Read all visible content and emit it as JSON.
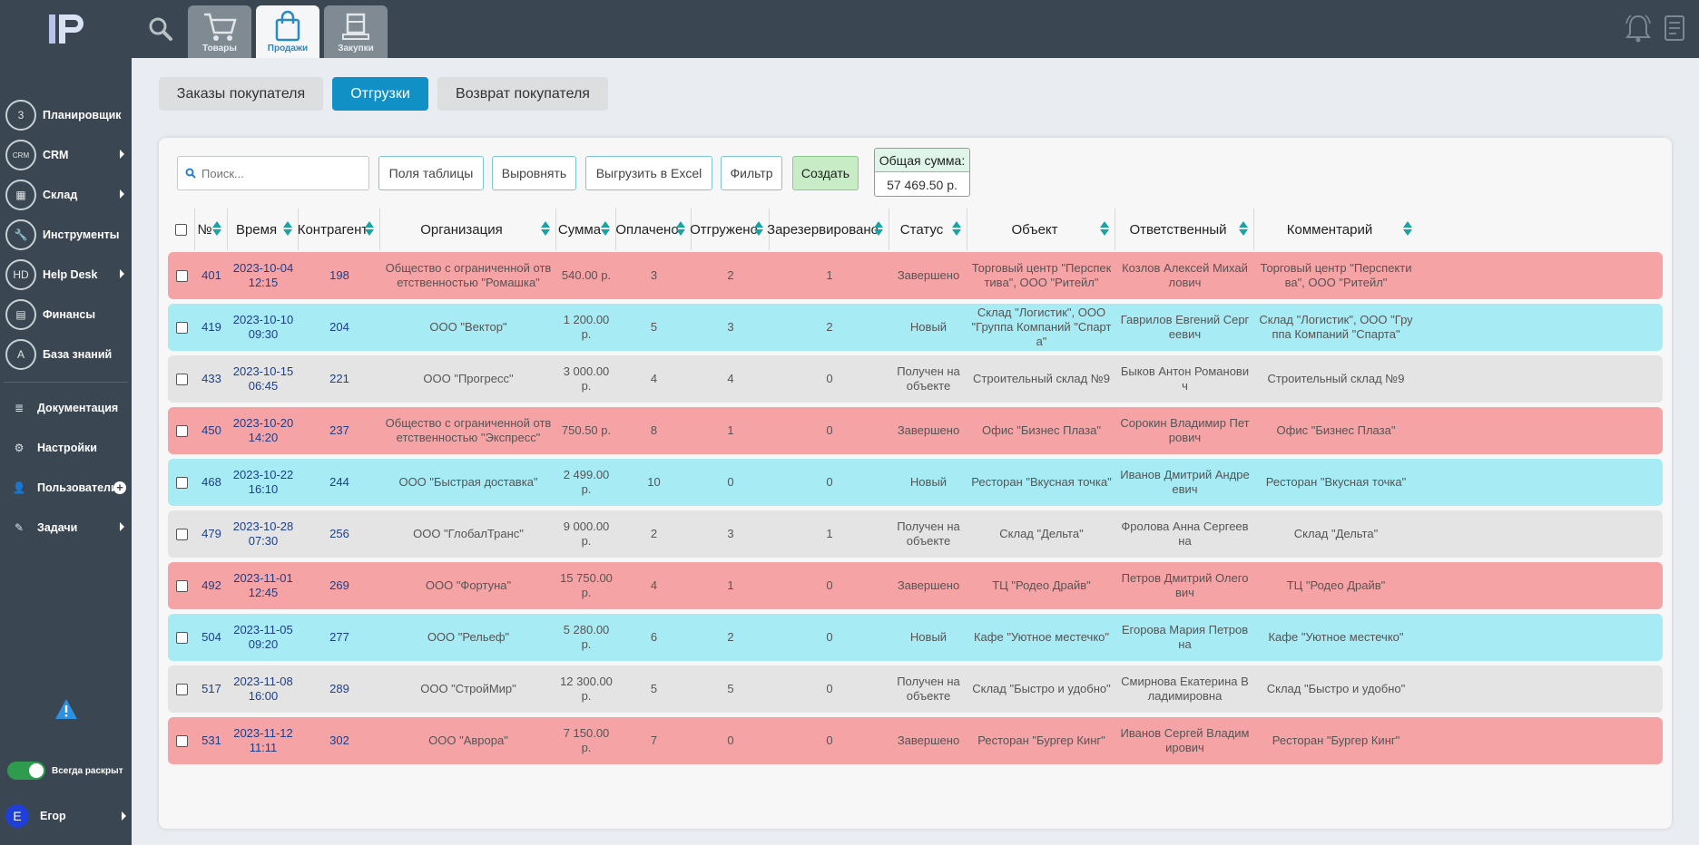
{
  "sidebar": {
    "items": [
      {
        "label": "Планировщик",
        "icon": "calendar-icon",
        "glyph": "3",
        "arrow": false
      },
      {
        "label": "CRM",
        "icon": "crm-icon",
        "glyph": "CRM",
        "arrow": true
      },
      {
        "label": "Склад",
        "icon": "warehouse-icon",
        "glyph": "▦",
        "arrow": true
      },
      {
        "label": "Инструменты",
        "icon": "wrench-icon",
        "glyph": "🔧",
        "arrow": false
      },
      {
        "label": "Help Desk",
        "icon": "helpdesk-icon",
        "glyph": "HD",
        "arrow": true
      },
      {
        "label": "Финансы",
        "icon": "calculator-icon",
        "glyph": "▤",
        "arrow": false
      },
      {
        "label": "База знаний",
        "icon": "book-icon",
        "glyph": "A",
        "arrow": false
      }
    ],
    "items2": [
      {
        "label": "Документация",
        "icon": "document-icon",
        "glyph": "≣"
      },
      {
        "label": "Настройки",
        "icon": "gear-icon",
        "glyph": "⚙"
      },
      {
        "label": "Пользователи",
        "icon": "users-icon",
        "glyph": "👤"
      },
      {
        "label": "Задачи",
        "icon": "tasks-icon",
        "glyph": "✎"
      }
    ],
    "toggle_label": "Всегда раскрыт",
    "user_name": "Егор",
    "user_initial": "Е"
  },
  "topbar": {
    "tabs": [
      {
        "label": "Товары",
        "icon": "cart-icon",
        "active": false
      },
      {
        "label": "Продажи",
        "icon": "shopping-bag-icon",
        "active": true
      },
      {
        "label": "Закупки",
        "icon": "box-icon",
        "active": false
      }
    ]
  },
  "subtabs": [
    {
      "label": "Заказы покупателя",
      "active": false
    },
    {
      "label": "Отгрузки",
      "active": true
    },
    {
      "label": "Возврат покупателя",
      "active": false
    }
  ],
  "toolbar": {
    "search_placeholder": "Поиск...",
    "fields_label": "Поля таблицы",
    "align_label": "Выровнять",
    "excel_label": "Выгрузить в Excel",
    "filter_label": "Фильтр",
    "create_label": "Создать",
    "sum_title": "Общая сумма:",
    "sum_value": "57 469.50 р."
  },
  "table": {
    "headers": [
      "№",
      "Время",
      "Контрагент",
      "Организация",
      "Сумма",
      "Оплачено",
      "Отгружено",
      "Зарезервировано",
      "Статус",
      "Объект",
      "Ответственный",
      "Комментарий"
    ],
    "rows": [
      {
        "color": "pink",
        "cells": [
          "401",
          "2023-10-04 12:15",
          "198",
          "Общество с ограниченной ответственностью \"Ромашка\"",
          "540.00 р.",
          "3",
          "2",
          "1",
          "Завершено",
          "Торговый центр \"Перспектива\", ООО \"Ритейл\"",
          "Козлов Алексей Михайлович",
          "Торговый центр \"Перспектива\", ООО \"Ритейл\""
        ]
      },
      {
        "color": "cyan",
        "cells": [
          "419",
          "2023-10-10 09:30",
          "204",
          "ООО \"Вектор\"",
          "1 200.00 р.",
          "5",
          "3",
          "2",
          "Новый",
          "Склад \"Логистик\", ООО \"Группа Компаний \"Спарта\"",
          "Гаврилов Евгений Сергеевич",
          "Склад \"Логистик\", ООО \"Группа Компаний \"Спарта\""
        ]
      },
      {
        "color": "gray",
        "cells": [
          "433",
          "2023-10-15 06:45",
          "221",
          "ООО \"Прогресс\"",
          "3 000.00 р.",
          "4",
          "4",
          "0",
          "Получен на объекте",
          "Строительный склад №9",
          "Быков Антон Романович",
          "Строительный склад №9"
        ]
      },
      {
        "color": "pink",
        "cells": [
          "450",
          "2023-10-20 14:20",
          "237",
          "Общество с ограниченной ответственностью \"Экспресс\"",
          "750.50 р.",
          "8",
          "1",
          "0",
          "Завершено",
          "Офис \"Бизнес Плаза\"",
          "Сорокин Владимир Петрович",
          "Офис \"Бизнес Плаза\""
        ]
      },
      {
        "color": "cyan",
        "cells": [
          "468",
          "2023-10-22 16:10",
          "244",
          "ООО \"Быстрая доставка\"",
          "2 499.00 р.",
          "10",
          "0",
          "0",
          "Новый",
          "Ресторан \"Вкусная точка\"",
          "Иванов Дмитрий Андреевич",
          "Ресторан \"Вкусная точка\""
        ]
      },
      {
        "color": "gray",
        "cells": [
          "479",
          "2023-10-28 07:30",
          "256",
          "ООО \"ГлобалТранс\"",
          "9 000.00 р.",
          "2",
          "3",
          "1",
          "Получен на объекте",
          "Склад \"Дельта\"",
          "Фролова Анна Сергеевна",
          "Склад \"Дельта\""
        ]
      },
      {
        "color": "pink",
        "cells": [
          "492",
          "2023-11-01 12:45",
          "269",
          "ООО \"Фортуна\"",
          "15 750.00 р.",
          "4",
          "1",
          "0",
          "Завершено",
          "ТЦ \"Родео Драйв\"",
          "Петров Дмитрий Олегович",
          "ТЦ \"Родео Драйв\""
        ]
      },
      {
        "color": "cyan",
        "cells": [
          "504",
          "2023-11-05 09:20",
          "277",
          "ООО \"Рельеф\"",
          "5 280.00 р.",
          "6",
          "2",
          "0",
          "Новый",
          "Кафе \"Уютное местечко\"",
          "Егорова Мария Петровна",
          "Кафе \"Уютное местечко\""
        ]
      },
      {
        "color": "gray",
        "cells": [
          "517",
          "2023-11-08 16:00",
          "289",
          "ООО \"СтройМир\"",
          "12 300.00 р.",
          "5",
          "5",
          "0",
          "Получен на объекте",
          "Склад \"Быстро и удобно\"",
          "Смирнова Екатерина Владимировна",
          "Склад \"Быстро и удобно\""
        ]
      },
      {
        "color": "pink",
        "cells": [
          "531",
          "2023-11-12 11:11",
          "302",
          "ООО \"Аврора\"",
          "7 150.00 р.",
          "7",
          "0",
          "0",
          "Завершено",
          "Ресторан \"Бургер Кинг\"",
          "Иванов Сергей Владимирович",
          "Ресторан \"Бургер Кинг\""
        ]
      }
    ]
  }
}
